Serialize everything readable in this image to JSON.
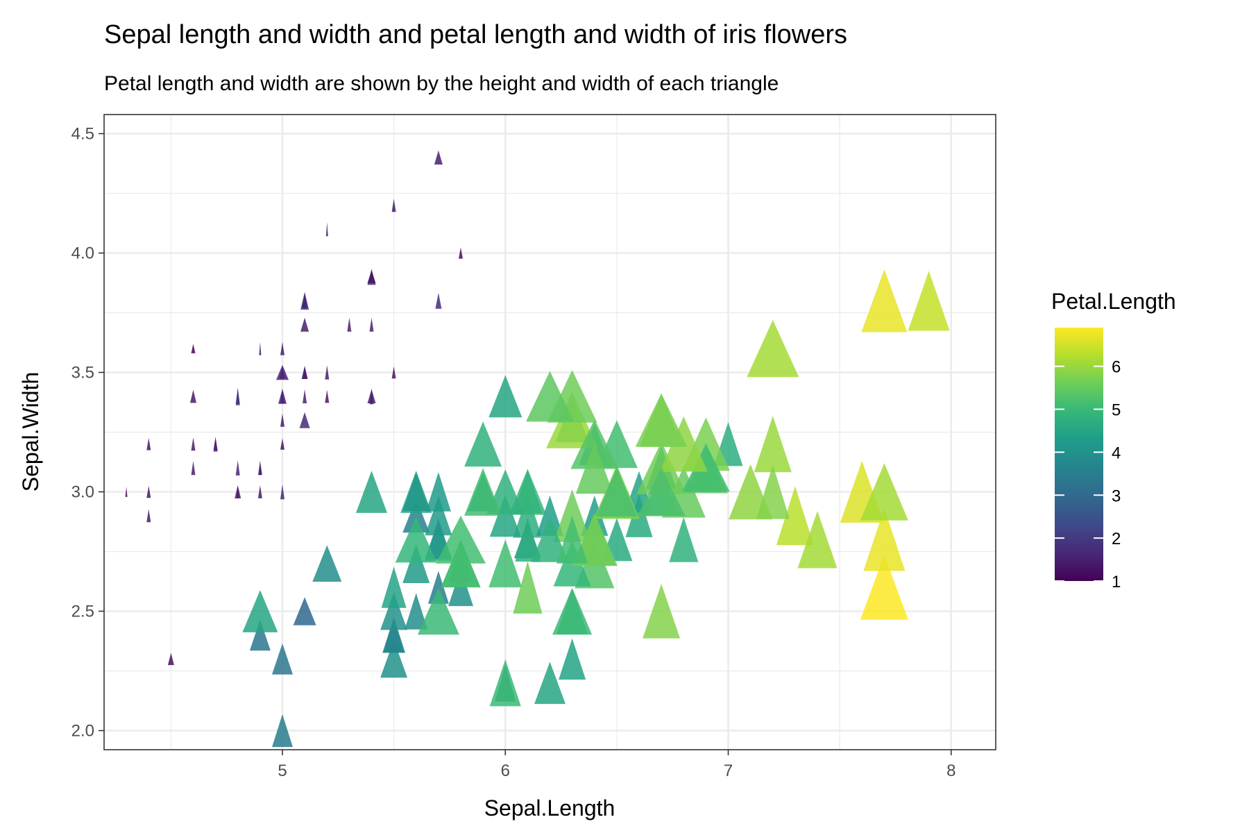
{
  "chart_data": {
    "type": "scatter",
    "title": "Sepal length and width and petal length and width of iris flowers",
    "subtitle": "Petal length and width are shown by the height and width of each triangle",
    "xlabel": "Sepal.Length",
    "ylabel": "Sepal.Width",
    "xlim": [
      4.2,
      8.2
    ],
    "ylim": [
      1.92,
      4.58
    ],
    "x_ticks": [
      5,
      6,
      7,
      8
    ],
    "y_ticks": [
      2.0,
      2.5,
      3.0,
      3.5,
      4.0,
      4.5
    ],
    "y_tick_labels": [
      "2.0",
      "2.5",
      "3.0",
      "3.5",
      "4.0",
      "4.5"
    ],
    "grid": true,
    "marker": "triangle",
    "color_scale": {
      "name": "viridis",
      "variable": "Petal.Length",
      "min": 1,
      "max": 6.9,
      "ticks": [
        1,
        2,
        3,
        4,
        5,
        6
      ],
      "stops": [
        "#440154",
        "#482878",
        "#3E4A89",
        "#31688E",
        "#26828E",
        "#1F9E89",
        "#35B779",
        "#6DCD59",
        "#B4DE2C",
        "#FDE725"
      ]
    },
    "legend": {
      "title": "Petal.Length",
      "position": "right"
    },
    "fields": [
      "Sepal.Length",
      "Sepal.Width",
      "Petal.Length",
      "Petal.Width"
    ],
    "points": [
      [
        5.1,
        3.5,
        1.4,
        0.2
      ],
      [
        4.9,
        3.0,
        1.4,
        0.2
      ],
      [
        4.7,
        3.2,
        1.3,
        0.2
      ],
      [
        4.6,
        3.1,
        1.5,
        0.2
      ],
      [
        5.0,
        3.6,
        1.4,
        0.2
      ],
      [
        5.4,
        3.9,
        1.7,
        0.4
      ],
      [
        4.6,
        3.4,
        1.4,
        0.3
      ],
      [
        5.0,
        3.4,
        1.5,
        0.2
      ],
      [
        4.4,
        2.9,
        1.4,
        0.2
      ],
      [
        4.9,
        3.1,
        1.5,
        0.1
      ],
      [
        5.4,
        3.7,
        1.5,
        0.2
      ],
      [
        4.8,
        3.4,
        1.6,
        0.2
      ],
      [
        4.8,
        3.0,
        1.4,
        0.1
      ],
      [
        4.3,
        3.0,
        1.1,
        0.1
      ],
      [
        5.8,
        4.0,
        1.2,
        0.2
      ],
      [
        5.7,
        4.4,
        1.5,
        0.4
      ],
      [
        5.4,
        3.9,
        1.3,
        0.4
      ],
      [
        5.1,
        3.5,
        1.4,
        0.3
      ],
      [
        5.7,
        3.8,
        1.7,
        0.3
      ],
      [
        5.1,
        3.8,
        1.5,
        0.3
      ],
      [
        5.4,
        3.4,
        1.7,
        0.2
      ],
      [
        5.1,
        3.7,
        1.5,
        0.4
      ],
      [
        4.6,
        3.6,
        1.0,
        0.2
      ],
      [
        5.1,
        3.3,
        1.7,
        0.5
      ],
      [
        4.8,
        3.4,
        1.9,
        0.2
      ],
      [
        5.0,
        3.0,
        1.6,
        0.2
      ],
      [
        5.0,
        3.4,
        1.6,
        0.4
      ],
      [
        5.2,
        3.5,
        1.5,
        0.2
      ],
      [
        5.2,
        3.4,
        1.4,
        0.2
      ],
      [
        4.7,
        3.2,
        1.6,
        0.2
      ],
      [
        4.8,
        3.1,
        1.6,
        0.2
      ],
      [
        5.4,
        3.4,
        1.5,
        0.4
      ],
      [
        5.2,
        4.1,
        1.5,
        0.1
      ],
      [
        5.5,
        4.2,
        1.4,
        0.2
      ],
      [
        4.9,
        3.1,
        1.5,
        0.2
      ],
      [
        5.0,
        3.2,
        1.2,
        0.2
      ],
      [
        5.5,
        3.5,
        1.3,
        0.2
      ],
      [
        4.9,
        3.6,
        1.4,
        0.1
      ],
      [
        4.4,
        3.0,
        1.3,
        0.2
      ],
      [
        5.1,
        3.4,
        1.5,
        0.2
      ],
      [
        5.0,
        3.5,
        1.3,
        0.3
      ],
      [
        4.5,
        2.3,
        1.3,
        0.3
      ],
      [
        4.4,
        3.2,
        1.3,
        0.2
      ],
      [
        5.0,
        3.5,
        1.6,
        0.6
      ],
      [
        5.1,
        3.8,
        1.9,
        0.4
      ],
      [
        4.8,
        3.0,
        1.4,
        0.3
      ],
      [
        5.1,
        3.8,
        1.6,
        0.2
      ],
      [
        4.6,
        3.2,
        1.4,
        0.2
      ],
      [
        5.3,
        3.7,
        1.5,
        0.2
      ],
      [
        5.0,
        3.3,
        1.4,
        0.2
      ],
      [
        7.0,
        3.2,
        4.7,
        1.4
      ],
      [
        6.4,
        3.2,
        4.5,
        1.5
      ],
      [
        6.9,
        3.1,
        4.9,
        1.5
      ],
      [
        5.5,
        2.3,
        4.0,
        1.3
      ],
      [
        6.5,
        2.8,
        4.6,
        1.5
      ],
      [
        5.7,
        2.8,
        4.5,
        1.3
      ],
      [
        6.3,
        3.3,
        4.7,
        1.6
      ],
      [
        4.9,
        2.4,
        3.3,
        1.0
      ],
      [
        6.6,
        2.9,
        4.6,
        1.3
      ],
      [
        5.2,
        2.7,
        3.9,
        1.4
      ],
      [
        5.0,
        2.0,
        3.5,
        1.0
      ],
      [
        5.9,
        3.0,
        4.2,
        1.5
      ],
      [
        6.0,
        2.2,
        4.0,
        1.0
      ],
      [
        6.1,
        2.9,
        4.7,
        1.4
      ],
      [
        5.6,
        2.9,
        3.6,
        1.3
      ],
      [
        6.7,
        3.1,
        4.4,
        1.4
      ],
      [
        5.6,
        3.0,
        4.5,
        1.5
      ],
      [
        5.8,
        2.7,
        4.1,
        1.0
      ],
      [
        6.2,
        2.2,
        4.5,
        1.5
      ],
      [
        5.6,
        2.5,
        3.9,
        1.1
      ],
      [
        5.9,
        3.2,
        4.8,
        1.8
      ],
      [
        6.1,
        2.8,
        4.0,
        1.3
      ],
      [
        6.3,
        2.5,
        4.9,
        1.5
      ],
      [
        6.1,
        2.8,
        4.7,
        1.2
      ],
      [
        6.4,
        2.9,
        4.3,
        1.3
      ],
      [
        6.6,
        3.0,
        4.4,
        1.4
      ],
      [
        6.8,
        2.8,
        4.8,
        1.4
      ],
      [
        6.7,
        3.0,
        5.0,
        1.7
      ],
      [
        6.0,
        2.9,
        4.5,
        1.5
      ],
      [
        5.7,
        2.6,
        3.5,
        1.0
      ],
      [
        5.5,
        2.4,
        3.8,
        1.1
      ],
      [
        5.5,
        2.4,
        3.7,
        1.0
      ],
      [
        5.8,
        2.7,
        3.9,
        1.2
      ],
      [
        6.0,
        2.7,
        5.1,
        1.6
      ],
      [
        5.4,
        3.0,
        4.5,
        1.5
      ],
      [
        6.0,
        3.4,
        4.5,
        1.6
      ],
      [
        6.7,
        3.1,
        4.7,
        1.5
      ],
      [
        6.3,
        2.3,
        4.4,
        1.3
      ],
      [
        5.6,
        3.0,
        4.1,
        1.3
      ],
      [
        5.5,
        2.5,
        4.0,
        1.3
      ],
      [
        5.5,
        2.6,
        4.4,
        1.2
      ],
      [
        6.1,
        3.0,
        4.6,
        1.4
      ],
      [
        5.8,
        2.6,
        4.0,
        1.2
      ],
      [
        5.0,
        2.3,
        3.3,
        1.0
      ],
      [
        5.6,
        2.7,
        4.2,
        1.3
      ],
      [
        5.7,
        3.0,
        4.2,
        1.2
      ],
      [
        5.7,
        2.9,
        4.2,
        1.3
      ],
      [
        6.2,
        2.9,
        4.3,
        1.3
      ],
      [
        5.1,
        2.5,
        3.0,
        1.1
      ],
      [
        5.7,
        2.8,
        4.1,
        1.3
      ],
      [
        6.3,
        3.3,
        6.0,
        2.5
      ],
      [
        5.8,
        2.7,
        5.1,
        1.9
      ],
      [
        7.1,
        3.0,
        5.9,
        2.1
      ],
      [
        6.3,
        2.9,
        5.6,
        1.8
      ],
      [
        6.5,
        3.0,
        5.8,
        2.2
      ],
      [
        7.6,
        3.0,
        6.6,
        2.1
      ],
      [
        4.9,
        2.5,
        4.5,
        1.7
      ],
      [
        7.3,
        2.9,
        6.3,
        1.8
      ],
      [
        6.7,
        2.5,
        5.8,
        1.8
      ],
      [
        7.2,
        3.6,
        6.1,
        2.5
      ],
      [
        6.5,
        3.2,
        5.1,
        2.0
      ],
      [
        6.4,
        2.7,
        5.3,
        1.9
      ],
      [
        6.8,
        3.0,
        5.5,
        2.1
      ],
      [
        5.7,
        2.5,
        5.0,
        2.0
      ],
      [
        5.8,
        2.8,
        5.1,
        2.4
      ],
      [
        6.4,
        3.2,
        5.3,
        2.3
      ],
      [
        6.5,
        3.0,
        5.5,
        1.8
      ],
      [
        7.7,
        3.8,
        6.7,
        2.2
      ],
      [
        7.7,
        2.6,
        6.9,
        2.3
      ],
      [
        6.0,
        2.2,
        5.0,
        1.5
      ],
      [
        6.9,
        3.2,
        5.7,
        2.3
      ],
      [
        5.6,
        2.8,
        4.9,
        2.0
      ],
      [
        7.7,
        2.8,
        6.7,
        2.0
      ],
      [
        6.3,
        2.7,
        4.9,
        1.8
      ],
      [
        6.7,
        3.3,
        5.7,
        2.1
      ],
      [
        7.2,
        3.2,
        6.0,
        1.8
      ],
      [
        6.2,
        2.8,
        4.8,
        1.8
      ],
      [
        6.1,
        3.0,
        4.9,
        1.8
      ],
      [
        6.4,
        2.8,
        5.6,
        2.1
      ],
      [
        7.2,
        3.0,
        5.8,
        1.6
      ],
      [
        7.4,
        2.8,
        6.1,
        1.9
      ],
      [
        7.9,
        3.8,
        6.4,
        2.0
      ],
      [
        6.4,
        2.8,
        5.6,
        2.2
      ],
      [
        6.3,
        2.8,
        5.1,
        1.5
      ],
      [
        6.1,
        2.6,
        5.6,
        1.4
      ],
      [
        7.7,
        3.0,
        6.1,
        2.3
      ],
      [
        6.3,
        3.4,
        5.6,
        2.4
      ],
      [
        6.4,
        3.1,
        5.5,
        1.8
      ],
      [
        6.0,
        3.0,
        4.8,
        1.8
      ],
      [
        6.9,
        3.1,
        5.4,
        2.1
      ],
      [
        6.7,
        3.1,
        5.6,
        2.4
      ],
      [
        6.9,
        3.1,
        5.1,
        2.3
      ],
      [
        5.8,
        2.7,
        5.1,
        1.9
      ],
      [
        6.8,
        3.2,
        5.9,
        2.3
      ],
      [
        6.7,
        3.3,
        5.7,
        2.5
      ],
      [
        6.7,
        3.0,
        5.2,
        2.3
      ],
      [
        6.3,
        2.5,
        5.0,
        1.9
      ],
      [
        6.5,
        3.0,
        5.2,
        2.0
      ],
      [
        6.2,
        3.4,
        5.4,
        2.3
      ],
      [
        5.9,
        3.0,
        5.1,
        1.8
      ]
    ]
  }
}
